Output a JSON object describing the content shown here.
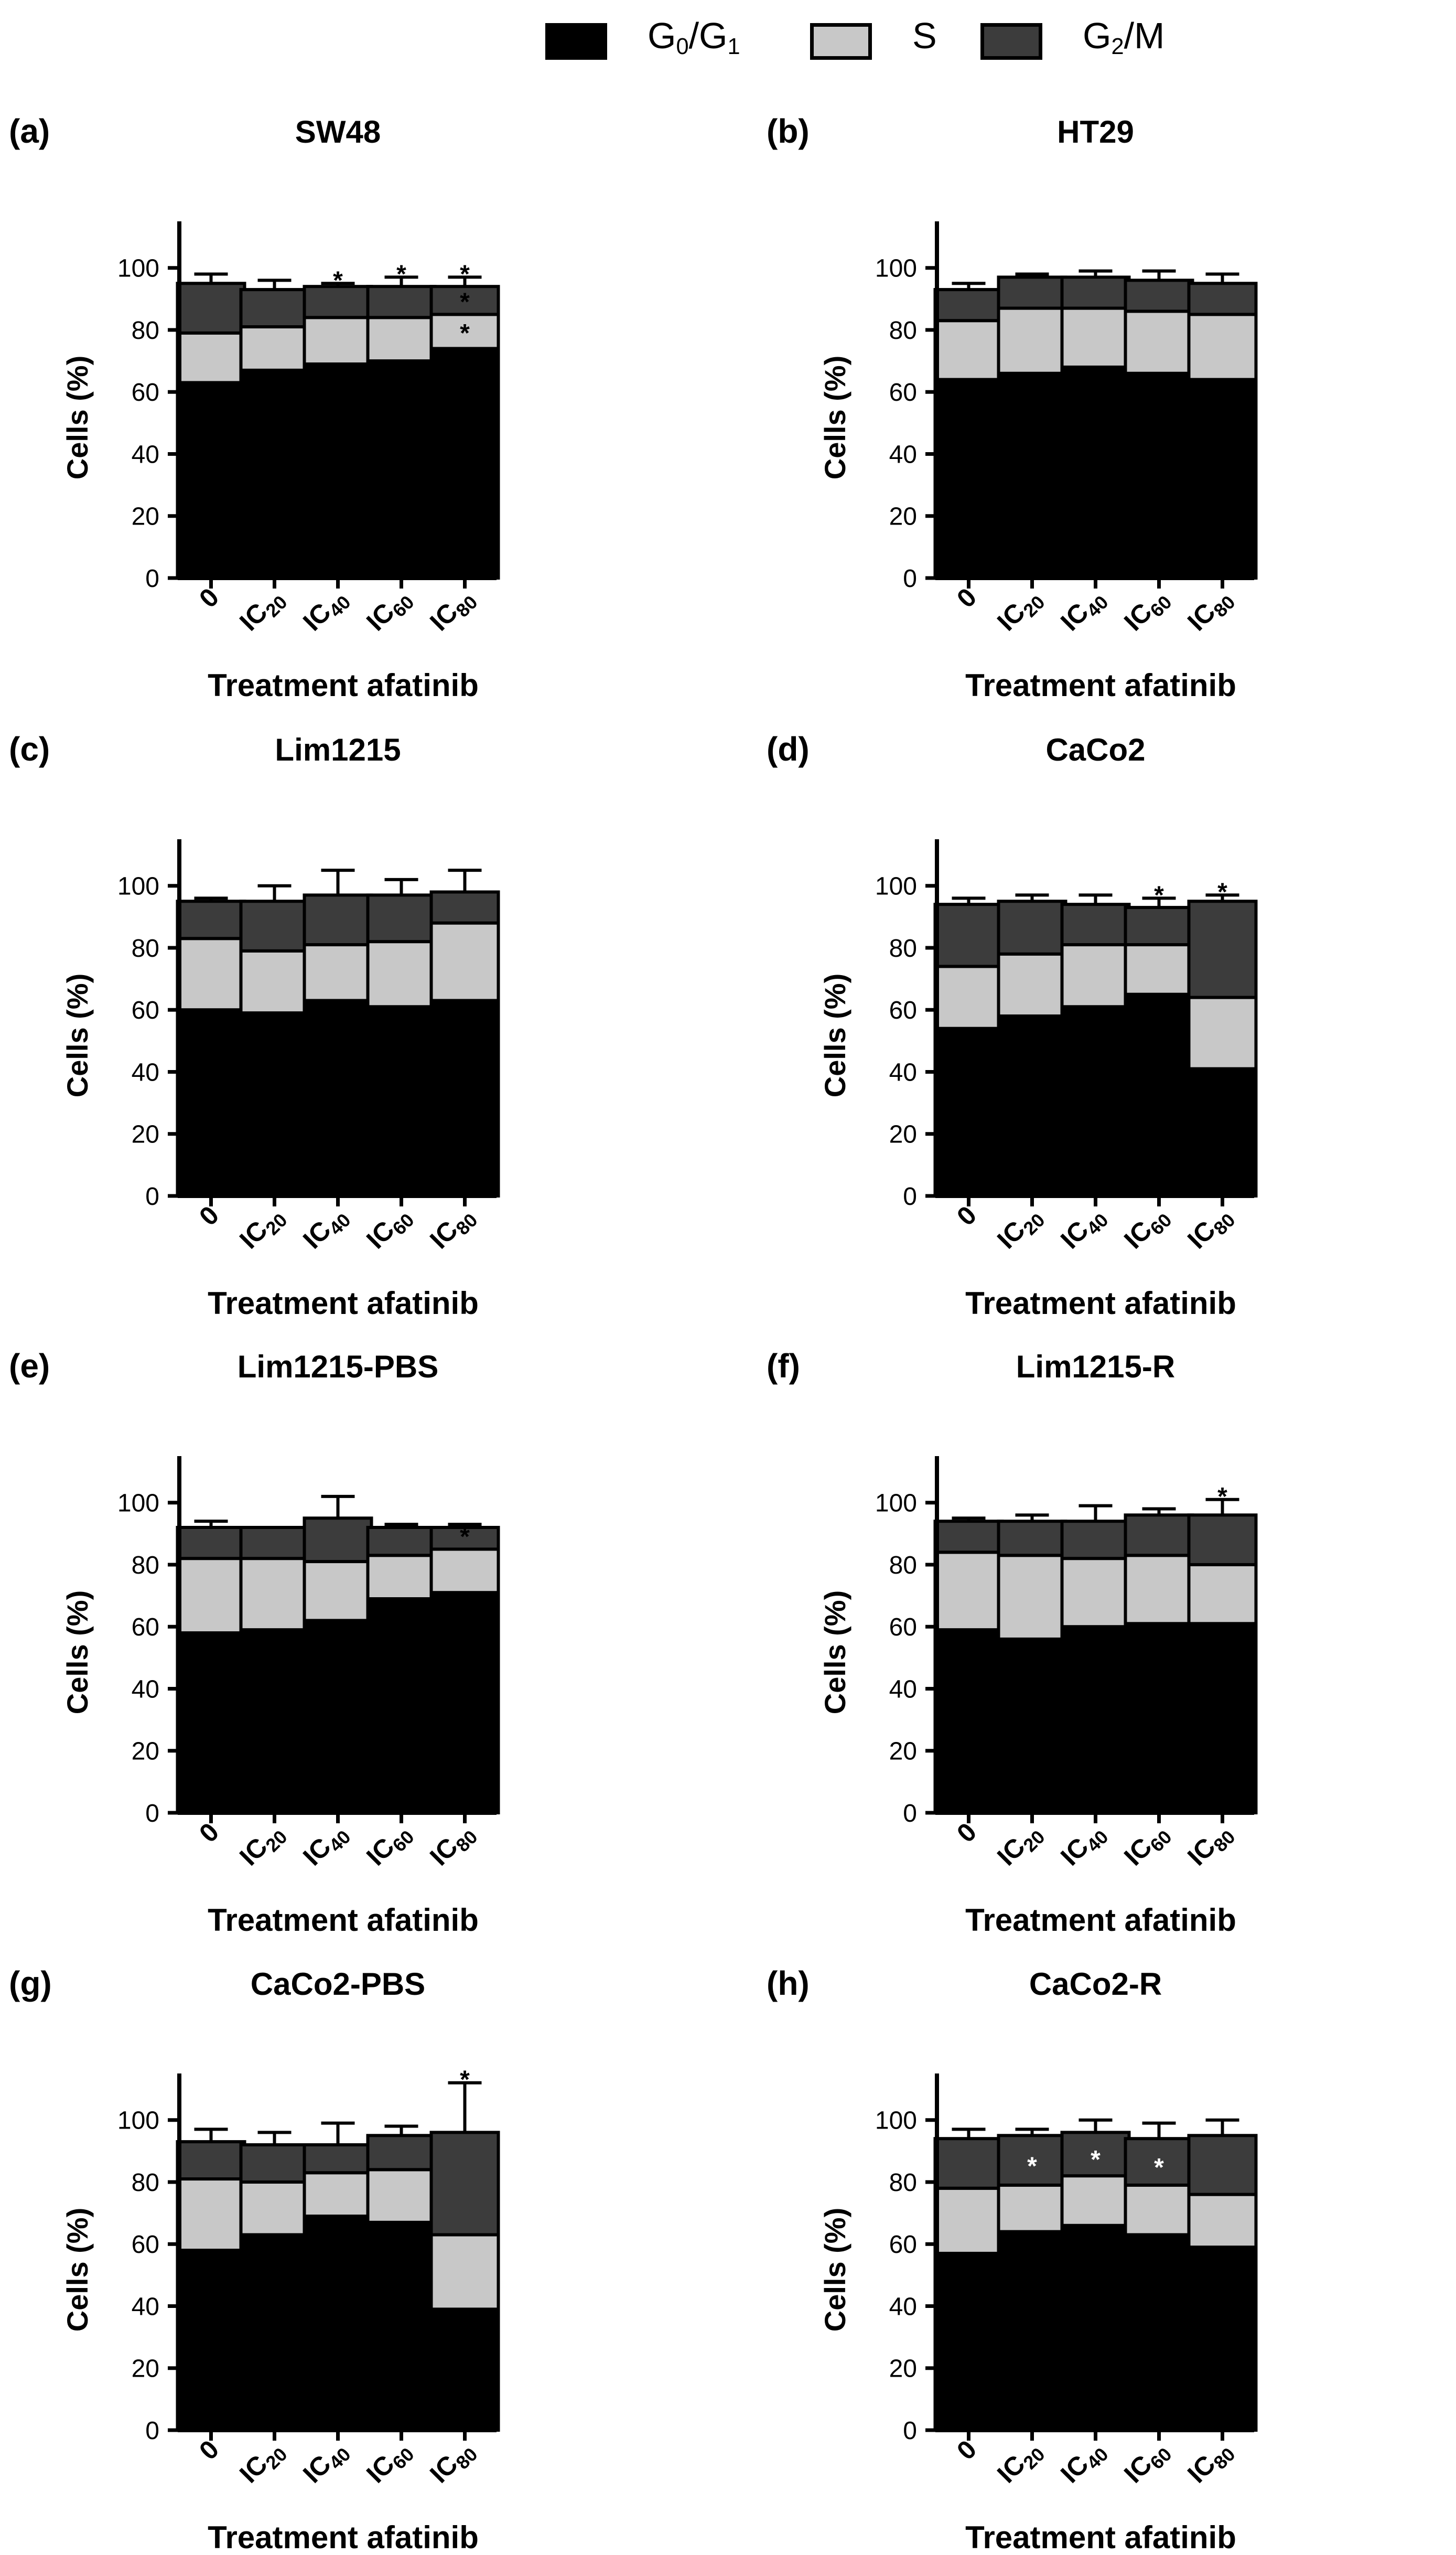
{
  "legend": [
    {
      "key": "g0g1",
      "base": "G",
      "sub1": "0",
      "mid": "/G",
      "sub2": "1",
      "color": "#000000"
    },
    {
      "key": "s",
      "base": "S",
      "sub1": "",
      "mid": "",
      "sub2": "",
      "color": "#c8c8c8"
    },
    {
      "key": "g2m",
      "base": "G",
      "sub1": "2",
      "mid": "/M",
      "sub2": "",
      "color": "#3c3c3c"
    }
  ],
  "chart_data": [
    {
      "panel": "(a)",
      "title": "SW48",
      "type": "bar",
      "stacked": true,
      "xlabel": "Treatment afatinib",
      "ylabel": "Cells (%)",
      "categories": [
        {
          "base": "0",
          "sub": ""
        },
        {
          "base": "IC",
          "sub": "20"
        },
        {
          "base": "IC",
          "sub": "40"
        },
        {
          "base": "IC",
          "sub": "60"
        },
        {
          "base": "IC",
          "sub": "80"
        }
      ],
      "ylim": [
        0,
        115
      ],
      "yticks": [
        0,
        20,
        40,
        60,
        80,
        100
      ],
      "series": [
        {
          "name": "G0/G1",
          "values": [
            63,
            67,
            69,
            70,
            74
          ],
          "err": [
            66,
            71,
            74,
            77,
            78
          ]
        },
        {
          "name": "S",
          "values": [
            16,
            14,
            15,
            14,
            11
          ],
          "err": [
            82,
            83,
            86,
            85,
            88
          ]
        },
        {
          "name": "G2/M",
          "values": [
            16,
            12,
            10,
            10,
            9
          ],
          "err": [
            98,
            96,
            95,
            97,
            97
          ]
        }
      ],
      "sig": [
        {
          "cat": 2,
          "seg": 2,
          "mark": "*"
        },
        {
          "cat": 3,
          "seg": 2,
          "mark": "*"
        },
        {
          "cat": 4,
          "seg": 2,
          "mark": "*"
        },
        {
          "cat": 4,
          "seg": 1,
          "mark": "*"
        },
        {
          "cat": 4,
          "seg": 0,
          "mark": "*"
        }
      ]
    },
    {
      "panel": "(b)",
      "title": "HT29",
      "type": "bar",
      "stacked": true,
      "xlabel": "Treatment afatinib",
      "ylabel": "Cells (%)",
      "categories": [
        {
          "base": "0",
          "sub": ""
        },
        {
          "base": "IC",
          "sub": "20"
        },
        {
          "base": "IC",
          "sub": "40"
        },
        {
          "base": "IC",
          "sub": "60"
        },
        {
          "base": "IC",
          "sub": "80"
        }
      ],
      "ylim": [
        0,
        115
      ],
      "yticks": [
        0,
        20,
        40,
        60,
        80,
        100
      ],
      "series": [
        {
          "name": "G0/G1",
          "values": [
            64,
            66,
            68,
            66,
            64
          ],
          "err": [
            69,
            68,
            73,
            68,
            71
          ]
        },
        {
          "name": "S",
          "values": [
            19,
            21,
            19,
            20,
            21
          ],
          "err": [
            86,
            89,
            90,
            88,
            86
          ]
        },
        {
          "name": "G2/M",
          "values": [
            10,
            10,
            10,
            10,
            10
          ],
          "err": [
            95,
            98,
            99,
            99,
            98
          ]
        }
      ],
      "sig": []
    },
    {
      "panel": "(c)",
      "title": "Lim1215",
      "type": "bar",
      "stacked": true,
      "xlabel": "Treatment afatinib",
      "ylabel": "Cells (%)",
      "categories": [
        {
          "base": "0",
          "sub": ""
        },
        {
          "base": "IC",
          "sub": "20"
        },
        {
          "base": "IC",
          "sub": "40"
        },
        {
          "base": "IC",
          "sub": "60"
        },
        {
          "base": "IC",
          "sub": "80"
        }
      ],
      "ylim": [
        0,
        115
      ],
      "yticks": [
        0,
        20,
        40,
        60,
        80,
        100
      ],
      "series": [
        {
          "name": "G0/G1",
          "values": [
            60,
            59,
            63,
            61,
            63
          ],
          "err": [
            62,
            61,
            66,
            64,
            70
          ]
        },
        {
          "name": "S",
          "values": [
            23,
            20,
            18,
            21,
            25
          ],
          "err": [
            86,
            85,
            89,
            91,
            91
          ]
        },
        {
          "name": "G2/M",
          "values": [
            12,
            16,
            16,
            15,
            10
          ],
          "err": [
            96,
            100,
            105,
            102,
            105
          ]
        }
      ],
      "sig": []
    },
    {
      "panel": "(d)",
      "title": "CaCo2",
      "type": "bar",
      "stacked": true,
      "xlabel": "Treatment afatinib",
      "ylabel": "Cells (%)",
      "categories": [
        {
          "base": "0",
          "sub": ""
        },
        {
          "base": "IC",
          "sub": "20"
        },
        {
          "base": "IC",
          "sub": "40"
        },
        {
          "base": "IC",
          "sub": "60"
        },
        {
          "base": "IC",
          "sub": "80"
        }
      ],
      "ylim": [
        0,
        115
      ],
      "yticks": [
        0,
        20,
        40,
        60,
        80,
        100
      ],
      "series": [
        {
          "name": "G0/G1",
          "values": [
            54,
            58,
            61,
            65,
            41
          ],
          "err": [
            60,
            64,
            72,
            75,
            48
          ]
        },
        {
          "name": "S",
          "values": [
            20,
            20,
            20,
            16,
            23
          ],
          "err": [
            76,
            82,
            86,
            84,
            67
          ]
        },
        {
          "name": "G2/M",
          "values": [
            20,
            17,
            13,
            12,
            31
          ],
          "err": [
            96,
            97,
            97,
            96,
            97
          ]
        }
      ],
      "sig": [
        {
          "cat": 3,
          "seg": 2,
          "mark": "*"
        },
        {
          "cat": 4,
          "seg": 2,
          "mark": "*"
        }
      ]
    },
    {
      "panel": "(e)",
      "title": "Lim1215-PBS",
      "type": "bar",
      "stacked": true,
      "xlabel": "Treatment afatinib",
      "ylabel": "Cells (%)",
      "categories": [
        {
          "base": "0",
          "sub": ""
        },
        {
          "base": "IC",
          "sub": "20"
        },
        {
          "base": "IC",
          "sub": "40"
        },
        {
          "base": "IC",
          "sub": "60"
        },
        {
          "base": "IC",
          "sub": "80"
        }
      ],
      "ylim": [
        0,
        115
      ],
      "yticks": [
        0,
        20,
        40,
        60,
        80,
        100
      ],
      "series": [
        {
          "name": "G0/G1",
          "values": [
            58,
            59,
            62,
            69,
            71
          ],
          "err": [
            65,
            65,
            67,
            73,
            75
          ]
        },
        {
          "name": "S",
          "values": [
            24,
            23,
            19,
            14,
            14
          ],
          "err": [
            86,
            88,
            88,
            84,
            88
          ]
        },
        {
          "name": "G2/M",
          "values": [
            10,
            10,
            14,
            9,
            7
          ],
          "err": [
            94,
            92,
            102,
            93,
            93
          ]
        }
      ],
      "sig": [
        {
          "cat": 4,
          "seg": 1,
          "mark": "*"
        }
      ]
    },
    {
      "panel": "(f)",
      "title": "Lim1215-R",
      "type": "bar",
      "stacked": true,
      "xlabel": "Treatment afatinib",
      "ylabel": "Cells (%)",
      "categories": [
        {
          "base": "0",
          "sub": ""
        },
        {
          "base": "IC",
          "sub": "20"
        },
        {
          "base": "IC",
          "sub": "40"
        },
        {
          "base": "IC",
          "sub": "60"
        },
        {
          "base": "IC",
          "sub": "80"
        }
      ],
      "ylim": [
        0,
        115
      ],
      "yticks": [
        0,
        20,
        40,
        60,
        80,
        100
      ],
      "series": [
        {
          "name": "G0/G1",
          "values": [
            59,
            56,
            60,
            61,
            61
          ],
          "err": [
            65,
            62,
            66,
            69,
            62
          ]
        },
        {
          "name": "S",
          "values": [
            25,
            27,
            22,
            22,
            19
          ],
          "err": [
            88,
            85,
            89,
            90,
            84
          ]
        },
        {
          "name": "G2/M",
          "values": [
            10,
            11,
            12,
            13,
            16
          ],
          "err": [
            95,
            96,
            99,
            98,
            101
          ]
        }
      ],
      "sig": [
        {
          "cat": 4,
          "seg": 2,
          "mark": "*"
        }
      ]
    },
    {
      "panel": "(g)",
      "title": "CaCo2-PBS",
      "type": "bar",
      "stacked": true,
      "xlabel": "Treatment afatinib",
      "ylabel": "Cells (%)",
      "categories": [
        {
          "base": "0",
          "sub": ""
        },
        {
          "base": "IC",
          "sub": "20"
        },
        {
          "base": "IC",
          "sub": "40"
        },
        {
          "base": "IC",
          "sub": "60"
        },
        {
          "base": "IC",
          "sub": "80"
        }
      ],
      "ylim": [
        0,
        115
      ],
      "yticks": [
        0,
        20,
        40,
        60,
        80,
        100
      ],
      "series": [
        {
          "name": "G0/G1",
          "values": [
            58,
            63,
            69,
            67,
            39
          ],
          "err": [
            67,
            73,
            82,
            76,
            51
          ]
        },
        {
          "name": "S",
          "values": [
            23,
            17,
            14,
            17,
            24
          ],
          "err": [
            88,
            86,
            89,
            89,
            70
          ]
        },
        {
          "name": "G2/M",
          "values": [
            12,
            12,
            9,
            11,
            33
          ],
          "err": [
            97,
            96,
            99,
            98,
            112
          ]
        }
      ],
      "sig": [
        {
          "cat": 4,
          "seg": 2,
          "mark": "*"
        }
      ]
    },
    {
      "panel": "(h)",
      "title": "CaCo2-R",
      "type": "bar",
      "stacked": true,
      "xlabel": "Treatment afatinib",
      "ylabel": "Cells (%)",
      "categories": [
        {
          "base": "0",
          "sub": ""
        },
        {
          "base": "IC",
          "sub": "20"
        },
        {
          "base": "IC",
          "sub": "40"
        },
        {
          "base": "IC",
          "sub": "60"
        },
        {
          "base": "IC",
          "sub": "80"
        }
      ],
      "ylim": [
        0,
        115
      ],
      "yticks": [
        0,
        20,
        40,
        60,
        80,
        100
      ],
      "series": [
        {
          "name": "G0/G1",
          "values": [
            57,
            64,
            66,
            63,
            59
          ],
          "err": [
            61,
            67,
            73,
            71,
            62
          ]
        },
        {
          "name": "S",
          "values": [
            21,
            15,
            16,
            16,
            17
          ],
          "err": [
            79,
            81,
            84,
            80,
            79
          ]
        },
        {
          "name": "G2/M",
          "values": [
            16,
            16,
            14,
            15,
            19
          ],
          "err": [
            97,
            97,
            100,
            99,
            100
          ]
        }
      ],
      "sig": [
        {
          "cat": 1,
          "seg": 2,
          "mark": "*"
        },
        {
          "cat": 2,
          "seg": 2,
          "mark": "*"
        },
        {
          "cat": 3,
          "seg": 2,
          "mark": "*"
        }
      ]
    }
  ]
}
